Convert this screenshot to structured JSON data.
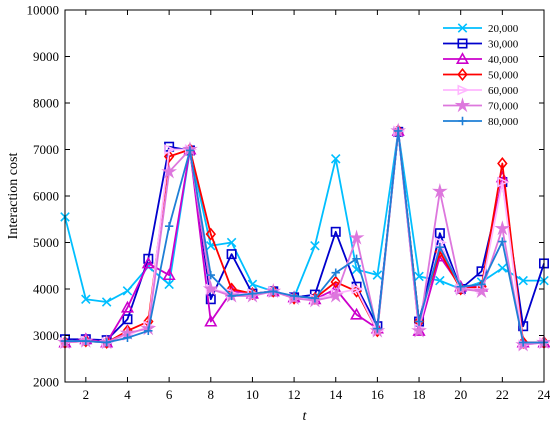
{
  "chart_data": {
    "type": "line",
    "title": "",
    "xlabel": "t",
    "ylabel": "Interaction cost",
    "xlim": [
      1,
      24
    ],
    "ylim": [
      2000,
      10000
    ],
    "xticks": [
      2,
      4,
      6,
      8,
      10,
      12,
      14,
      16,
      18,
      20,
      22,
      24
    ],
    "yticks": [
      2000,
      3000,
      4000,
      5000,
      6000,
      7000,
      8000,
      9000,
      10000
    ],
    "xtick_labels": [
      "2",
      "4",
      "6",
      "8",
      "10",
      "12",
      "14",
      "16",
      "18",
      "20",
      "22",
      "24"
    ],
    "ytick_labels": [
      "2000",
      "3000",
      "4000",
      "5000",
      "6000",
      "7000",
      "8000",
      "9000",
      "10000"
    ],
    "grid": false,
    "legend_position": "top-right",
    "x": [
      1,
      2,
      3,
      4,
      5,
      6,
      7,
      8,
      9,
      10,
      11,
      12,
      13,
      14,
      15,
      16,
      17,
      18,
      19,
      20,
      21,
      22,
      23,
      24
    ],
    "series": [
      {
        "name": "20,000",
        "color": "#00bfff",
        "marker": "x",
        "values": [
          5550,
          3780,
          3720,
          3960,
          4480,
          4100,
          6980,
          4930,
          5000,
          4100,
          3950,
          3820,
          4930,
          6800,
          4420,
          4300,
          7380,
          4270,
          4180,
          4000,
          4150,
          4450,
          4180,
          4180
        ]
      },
      {
        "name": "30,000",
        "color": "#0000cd",
        "marker": "square",
        "values": [
          2920,
          2920,
          2900,
          3350,
          4650,
          7060,
          6980,
          3780,
          4750,
          3900,
          3950,
          3820,
          3880,
          5230,
          4050,
          3200,
          7380,
          3300,
          5200,
          4000,
          4380,
          6300,
          3200,
          4550
        ]
      },
      {
        "name": "40,000",
        "color": "#cc00cc",
        "marker": "triangle-up",
        "values": [
          2850,
          2920,
          2850,
          3600,
          4550,
          4300,
          7000,
          3300,
          3950,
          3900,
          3950,
          3820,
          3780,
          4000,
          3450,
          3150,
          7400,
          3100,
          4700,
          4050,
          4050,
          6400,
          2850,
          2850
        ]
      },
      {
        "name": "50,000",
        "color": "#ff0000",
        "marker": "diamond",
        "values": [
          2850,
          2880,
          2850,
          3100,
          3300,
          6850,
          7000,
          5180,
          4000,
          3900,
          3950,
          3800,
          3800,
          4150,
          3950,
          3100,
          7400,
          3300,
          4800,
          4000,
          4050,
          6700,
          2850,
          2850
        ]
      },
      {
        "name": "60,000",
        "color": "#ffb6ff",
        "marker": "triangle-right",
        "values": [
          2850,
          2880,
          2850,
          3000,
          3200,
          7000,
          7000,
          4000,
          3900,
          3900,
          3950,
          3800,
          3780,
          3900,
          4000,
          3100,
          7400,
          3150,
          5000,
          4000,
          4000,
          6300,
          2800,
          2850
        ]
      },
      {
        "name": "70,000",
        "color": "#dd77dd",
        "marker": "star",
        "values": [
          2850,
          2880,
          2850,
          3050,
          3150,
          6520,
          7000,
          4000,
          3850,
          3850,
          3950,
          3800,
          3750,
          3850,
          5100,
          3100,
          7400,
          3100,
          6100,
          4000,
          3950,
          5300,
          2800,
          2850
        ]
      },
      {
        "name": "80,000",
        "color": "#1e7fd6",
        "marker": "plus",
        "values": [
          2880,
          2880,
          2850,
          2950,
          3100,
          5350,
          6980,
          4300,
          3850,
          3900,
          3950,
          3850,
          3800,
          4350,
          4650,
          3150,
          7400,
          3300,
          4900,
          4050,
          4100,
          5020,
          2850,
          2850
        ]
      }
    ]
  }
}
